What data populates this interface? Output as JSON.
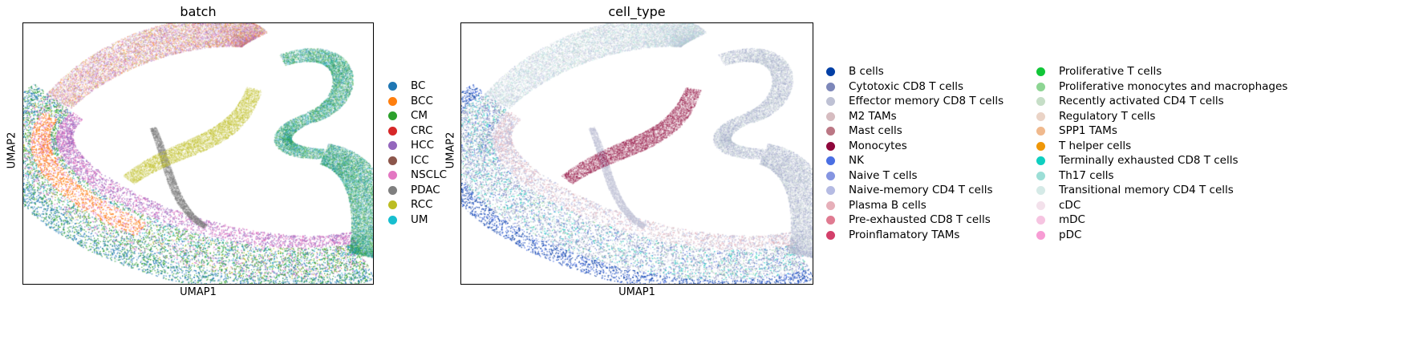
{
  "chart_data": [
    {
      "type": "scatter",
      "title": "batch",
      "xlabel": "UMAP1",
      "ylabel": "UMAP2",
      "legend_placement": "right",
      "grid": false,
      "categories": [
        {
          "name": "BC",
          "color": "#1f77b4"
        },
        {
          "name": "BCC",
          "color": "#ff7f0e"
        },
        {
          "name": "CM",
          "color": "#2ca02c"
        },
        {
          "name": "CRC",
          "color": "#d62728"
        },
        {
          "name": "HCC",
          "color": "#9467bd"
        },
        {
          "name": "ICC",
          "color": "#8c564b"
        },
        {
          "name": "NSCLC",
          "color": "#e377c2"
        },
        {
          "name": "PDAC",
          "color": "#7f7f7f"
        },
        {
          "name": "RCC",
          "color": "#bcbd22"
        },
        {
          "name": "UM",
          "color": "#17becf"
        }
      ]
    },
    {
      "type": "scatter",
      "title": "cell_type",
      "xlabel": "UMAP1",
      "ylabel": "UMAP2",
      "legend_placement": "right",
      "grid": false,
      "categories": [
        {
          "name": "B cells",
          "color": "#023fa5"
        },
        {
          "name": "Cytotoxic CD8 T cells",
          "color": "#7d87b9"
        },
        {
          "name": "Effector memory CD8 T cells",
          "color": "#bec1d4"
        },
        {
          "name": "M2 TAMs",
          "color": "#d6bcc0"
        },
        {
          "name": "Mast cells",
          "color": "#bb7784"
        },
        {
          "name": "Monocytes",
          "color": "#8e063b"
        },
        {
          "name": "NK",
          "color": "#4a6fe3"
        },
        {
          "name": "Naive T cells",
          "color": "#8595e1"
        },
        {
          "name": "Naive-memory CD4 T cells",
          "color": "#b5bbe3"
        },
        {
          "name": "Plasma B cells",
          "color": "#e6afb9"
        },
        {
          "name": "Pre-exhausted CD8 T cells",
          "color": "#e07b91"
        },
        {
          "name": "Proinflamatory TAMs",
          "color": "#d33f6a"
        },
        {
          "name": "Proliferative T cells",
          "color": "#11c638"
        },
        {
          "name": "Proliferative monocytes and macrophages",
          "color": "#8dd593"
        },
        {
          "name": "Recently activated CD4 T cells",
          "color": "#c6dec7"
        },
        {
          "name": "Regulatory T cells",
          "color": "#ead3c6"
        },
        {
          "name": "SPP1 TAMs",
          "color": "#f0b98d"
        },
        {
          "name": "T helper cells",
          "color": "#ef9708"
        },
        {
          "name": "Terminally exhausted CD8 T cells",
          "color": "#0fcfc0"
        },
        {
          "name": "Th17 cells",
          "color": "#9cded6"
        },
        {
          "name": "Transitional memory CD4 T cells",
          "color": "#d5eae7"
        },
        {
          "name": "cDC",
          "color": "#f3e1eb"
        },
        {
          "name": "mDC",
          "color": "#f6c4e1"
        },
        {
          "name": "pDC",
          "color": "#f79cd4"
        }
      ]
    }
  ]
}
